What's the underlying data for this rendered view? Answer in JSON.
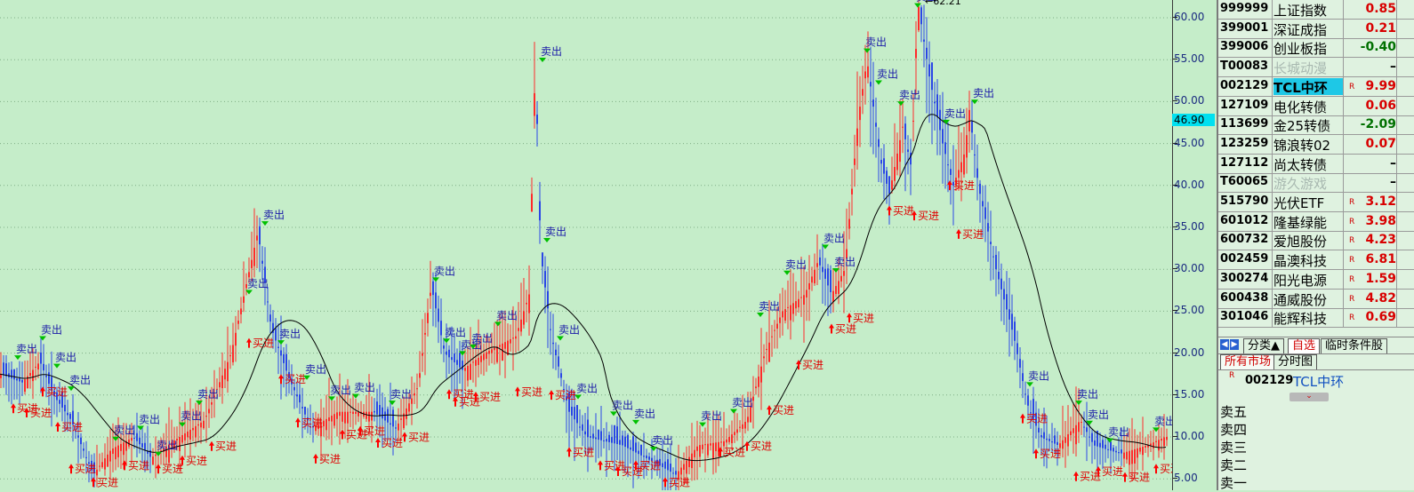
{
  "chart": {
    "max_label": "62.21",
    "current_price": "46.90",
    "y_axis": [
      60.0,
      55.0,
      50.0,
      45.0,
      40.0,
      35.0,
      30.0,
      25.0,
      20.0,
      15.0,
      10.0,
      5.0
    ],
    "y_axis_labels": [
      "60.00",
      "55.00",
      "50.00",
      "45.00",
      "40.00",
      "35.00",
      "30.00",
      "25.00",
      "20.00",
      "15.00",
      "10.00",
      "5.00"
    ],
    "buy_label": "买进",
    "sell_label": "卖出",
    "colors": {
      "up": "#ff2a2a",
      "down": "#2a46e6",
      "ma": "#000000",
      "buy_arrow": "#ff0000",
      "sell_arrow": "#00c000",
      "signal_text": "#1a1aa8",
      "buy_text": "#e00000"
    },
    "signals": [
      {
        "type": "sell",
        "x": 48,
        "price": 21.5
      },
      {
        "type": "sell",
        "x": 20,
        "price": 19.2
      },
      {
        "type": "sell",
        "x": 64,
        "price": 18.2
      },
      {
        "type": "sell",
        "x": 80,
        "price": 15.5
      },
      {
        "type": "buy",
        "x": 15,
        "price": 14.0
      },
      {
        "type": "buy",
        "x": 30,
        "price": 13.5
      },
      {
        "type": "buy",
        "x": 48,
        "price": 16.0
      },
      {
        "type": "buy",
        "x": 65,
        "price": 11.8
      },
      {
        "type": "buy",
        "x": 80,
        "price": 6.8
      },
      {
        "type": "buy",
        "x": 105,
        "price": 5.2
      },
      {
        "type": "sell",
        "x": 130,
        "price": 9.5
      },
      {
        "type": "sell",
        "x": 158,
        "price": 10.8
      },
      {
        "type": "buy",
        "x": 140,
        "price": 7.2
      },
      {
        "type": "buy",
        "x": 178,
        "price": 6.8
      },
      {
        "type": "sell",
        "x": 178,
        "price": 7.7
      },
      {
        "type": "sell",
        "x": 205,
        "price": 11.2
      },
      {
        "type": "sell",
        "x": 224,
        "price": 13.8
      },
      {
        "type": "buy",
        "x": 205,
        "price": 7.8
      },
      {
        "type": "buy",
        "x": 238,
        "price": 9.5
      },
      {
        "type": "sell",
        "x": 298,
        "price": 35.2
      },
      {
        "type": "sell",
        "x": 280,
        "price": 27.0
      },
      {
        "type": "buy",
        "x": 280,
        "price": 21.8
      },
      {
        "type": "sell",
        "x": 316,
        "price": 21.0
      },
      {
        "type": "buy",
        "x": 316,
        "price": 17.5
      },
      {
        "type": "sell",
        "x": 345,
        "price": 16.8
      },
      {
        "type": "buy",
        "x": 335,
        "price": 12.3
      },
      {
        "type": "buy",
        "x": 355,
        "price": 8.0
      },
      {
        "type": "sell",
        "x": 373,
        "price": 14.3
      },
      {
        "type": "sell",
        "x": 400,
        "price": 14.6
      },
      {
        "type": "buy",
        "x": 385,
        "price": 10.9
      },
      {
        "type": "buy",
        "x": 405,
        "price": 11.3
      },
      {
        "type": "buy",
        "x": 425,
        "price": 9.9
      },
      {
        "type": "buy",
        "x": 455,
        "price": 10.6
      },
      {
        "type": "sell",
        "x": 441,
        "price": 13.8
      },
      {
        "type": "sell",
        "x": 490,
        "price": 28.5
      },
      {
        "type": "sell",
        "x": 502,
        "price": 21.2
      },
      {
        "type": "sell",
        "x": 520,
        "price": 19.7
      },
      {
        "type": "sell",
        "x": 532,
        "price": 20.5
      },
      {
        "type": "sell",
        "x": 560,
        "price": 23.2
      },
      {
        "type": "buy",
        "x": 505,
        "price": 15.7
      },
      {
        "type": "buy",
        "x": 512,
        "price": 14.8
      },
      {
        "type": "buy",
        "x": 535,
        "price": 15.4
      },
      {
        "type": "buy",
        "x": 582,
        "price": 16.0
      },
      {
        "type": "sell",
        "x": 610,
        "price": 54.7
      },
      {
        "type": "sell",
        "x": 615,
        "price": 33.2
      },
      {
        "type": "sell",
        "x": 630,
        "price": 21.5
      },
      {
        "type": "sell",
        "x": 650,
        "price": 14.5
      },
      {
        "type": "buy",
        "x": 620,
        "price": 15.6
      },
      {
        "type": "buy",
        "x": 640,
        "price": 8.8
      },
      {
        "type": "buy",
        "x": 675,
        "price": 7.2
      },
      {
        "type": "buy",
        "x": 695,
        "price": 6.5
      },
      {
        "type": "buy",
        "x": 715,
        "price": 7.2
      },
      {
        "type": "buy",
        "x": 748,
        "price": 5.2
      },
      {
        "type": "sell",
        "x": 690,
        "price": 12.5
      },
      {
        "type": "sell",
        "x": 715,
        "price": 11.5
      },
      {
        "type": "sell",
        "x": 735,
        "price": 8.3
      },
      {
        "type": "sell",
        "x": 790,
        "price": 11.2
      },
      {
        "type": "sell",
        "x": 825,
        "price": 12.8
      },
      {
        "type": "buy",
        "x": 810,
        "price": 8.8
      },
      {
        "type": "buy",
        "x": 840,
        "price": 9.5
      },
      {
        "type": "buy",
        "x": 865,
        "price": 13.8
      },
      {
        "type": "sell",
        "x": 855,
        "price": 24.3
      },
      {
        "type": "sell",
        "x": 885,
        "price": 29.3
      },
      {
        "type": "buy",
        "x": 898,
        "price": 19.2
      },
      {
        "type": "sell",
        "x": 928,
        "price": 32.4
      },
      {
        "type": "sell",
        "x": 940,
        "price": 29.6
      },
      {
        "type": "buy",
        "x": 935,
        "price": 23.5
      },
      {
        "type": "buy",
        "x": 955,
        "price": 24.8
      },
      {
        "type": "sell",
        "x": 975,
        "price": 55.8
      },
      {
        "type": "sell",
        "x": 988,
        "price": 52.0
      },
      {
        "type": "sell",
        "x": 1013,
        "price": 49.5
      },
      {
        "type": "buy",
        "x": 1000,
        "price": 37.6
      },
      {
        "type": "buy",
        "x": 1028,
        "price": 37.0
      },
      {
        "type": "sell",
        "x": 1032,
        "price": 61.2
      },
      {
        "type": "sell",
        "x": 1064,
        "price": 47.3
      },
      {
        "type": "sell",
        "x": 1096,
        "price": 49.7
      },
      {
        "type": "buy",
        "x": 1068,
        "price": 40.6
      },
      {
        "type": "buy",
        "x": 1078,
        "price": 34.8
      },
      {
        "type": "sell",
        "x": 1158,
        "price": 16.0
      },
      {
        "type": "sell",
        "x": 1213,
        "price": 13.8
      },
      {
        "type": "sell",
        "x": 1225,
        "price": 11.4
      },
      {
        "type": "sell",
        "x": 1248,
        "price": 9.3
      },
      {
        "type": "sell",
        "x": 1300,
        "price": 10.6
      },
      {
        "type": "buy",
        "x": 1150,
        "price": 12.8
      },
      {
        "type": "buy",
        "x": 1165,
        "price": 8.6
      },
      {
        "type": "buy",
        "x": 1210,
        "price": 5.9
      },
      {
        "type": "buy",
        "x": 1235,
        "price": 6.5
      },
      {
        "type": "buy",
        "x": 1265,
        "price": 5.8
      },
      {
        "type": "buy",
        "x": 1300,
        "price": 6.8
      }
    ]
  },
  "quote_list": [
    {
      "code": "999999",
      "name": "上证指数",
      "flag": "",
      "chg": "0.85",
      "dir": "up",
      "state": ""
    },
    {
      "code": "399001",
      "name": "深证成指",
      "flag": "",
      "chg": "0.21",
      "dir": "up",
      "state": ""
    },
    {
      "code": "399006",
      "name": "创业板指",
      "flag": "",
      "chg": "-0.40",
      "dir": "down",
      "state": ""
    },
    {
      "code": "T00083",
      "name": "长城动漫",
      "flag": "",
      "chg": "–",
      "dir": "flat",
      "state": "suspended"
    },
    {
      "code": "002129",
      "name": "TCL中环",
      "flag": "R",
      "chg": "9.99",
      "dir": "up",
      "state": "selected"
    },
    {
      "code": "127109",
      "name": "电化转债",
      "flag": "",
      "chg": "0.06",
      "dir": "up",
      "state": ""
    },
    {
      "code": "113699",
      "name": "金25转债",
      "flag": "",
      "chg": "-2.09",
      "dir": "down",
      "state": ""
    },
    {
      "code": "123259",
      "name": "锦浪转02",
      "flag": "",
      "chg": "0.07",
      "dir": "up",
      "state": ""
    },
    {
      "code": "127112",
      "name": "尚太转债",
      "flag": "",
      "chg": "–",
      "dir": "flat",
      "state": ""
    },
    {
      "code": "T60065",
      "name": "游久游戏",
      "flag": "",
      "chg": "–",
      "dir": "flat",
      "state": "suspended"
    },
    {
      "code": "515790",
      "name": "光伏ETF",
      "flag": "R",
      "chg": "3.12",
      "dir": "up",
      "state": ""
    },
    {
      "code": "601012",
      "name": "隆基绿能",
      "flag": "R",
      "chg": "3.98",
      "dir": "up",
      "state": ""
    },
    {
      "code": "600732",
      "name": "爱旭股份",
      "flag": "R",
      "chg": "4.23",
      "dir": "up",
      "state": ""
    },
    {
      "code": "002459",
      "name": "晶澳科技",
      "flag": "R",
      "chg": "6.81",
      "dir": "up",
      "state": ""
    },
    {
      "code": "300274",
      "name": "阳光电源",
      "flag": "R",
      "chg": "1.59",
      "dir": "up",
      "state": ""
    },
    {
      "code": "600438",
      "name": "通威股份",
      "flag": "R",
      "chg": "4.82",
      "dir": "up",
      "state": ""
    },
    {
      "code": "301046",
      "name": "能辉科技",
      "flag": "R",
      "chg": "0.69",
      "dir": "up",
      "state": ""
    }
  ],
  "tabs": {
    "prev": "◀",
    "next": "▶",
    "category": "分类▲",
    "watchlist": "自选",
    "temp_condition": "临时条件股",
    "all_markets": "所有市场",
    "time_chart": "分时图"
  },
  "stock_header": {
    "flag": "R",
    "code": "002129",
    "name": "TCL中环"
  },
  "collapse_icon": "⌄",
  "order_book": [
    "卖五",
    "卖四",
    "卖三",
    "卖二",
    "卖一"
  ]
}
